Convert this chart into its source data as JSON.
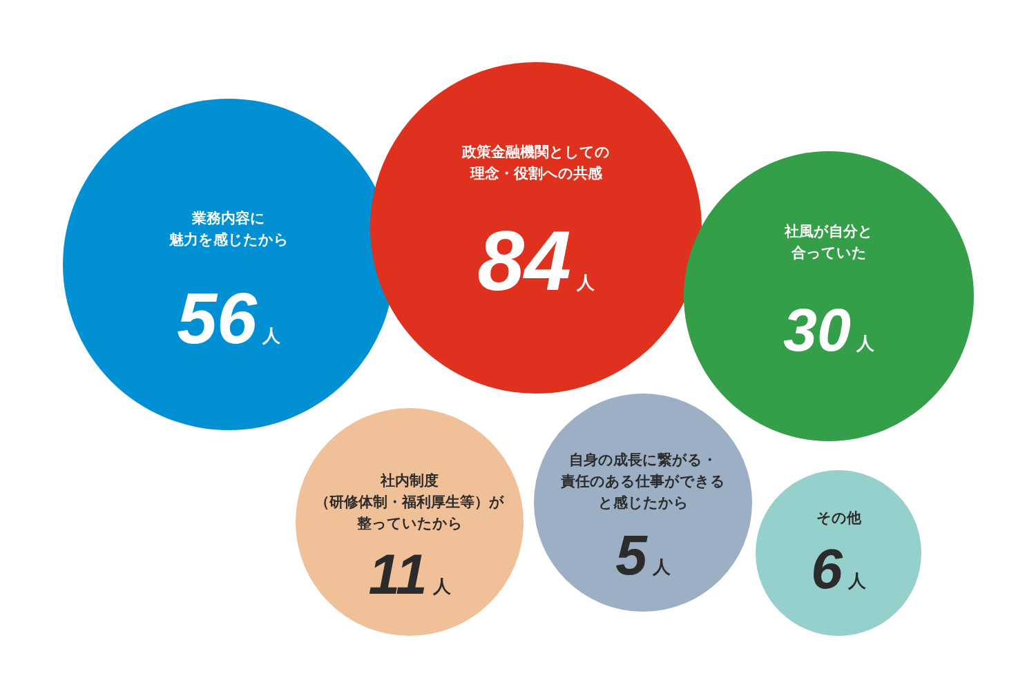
{
  "chart_data": {
    "type": "other",
    "categories": [
      "業務内容に魅力を感じたから",
      "政策金融機関としての理念・役割への共感",
      "社風が自分と合っていた",
      "社内制度（研修体制・福利厚生等）が整っていたから",
      "自身の成長に繋がる・責任のある仕事ができると感じたから",
      "その他"
    ],
    "values": [
      56,
      84,
      30,
      11,
      5,
      6
    ],
    "value_labels": [
      "56人",
      "84人",
      "30人",
      "11人",
      "5人",
      "6人"
    ],
    "colors": [
      "#0090d3",
      "#e0301e",
      "#349e48",
      "#f0c098",
      "#9dafc4",
      "#95d0cc"
    ]
  }
}
